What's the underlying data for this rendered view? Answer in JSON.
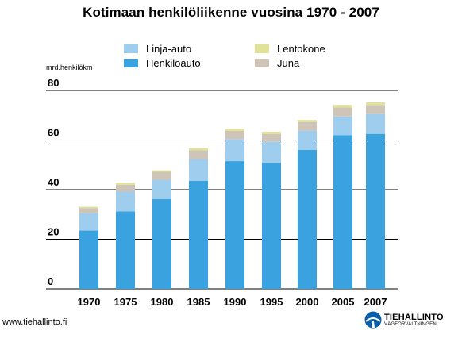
{
  "chart_data": {
    "type": "bar",
    "stacked": true,
    "title": "Kotimaan henkilöliikenne vuosina 1970 - 2007",
    "unit_label": "mrd.henkilökm",
    "categories": [
      "1970",
      "1975",
      "1980",
      "1985",
      "1990",
      "1995",
      "2000",
      "2005",
      "2007"
    ],
    "series": [
      {
        "name": "Henkilöauto",
        "color": "#3aa3df",
        "values": [
          23.5,
          31.2,
          36.2,
          43.6,
          51.5,
          50.8,
          56.0,
          62.0,
          62.5
        ]
      },
      {
        "name": "Linja-auto",
        "color": "#9fcdee",
        "values": [
          7.0,
          8.0,
          7.8,
          8.7,
          8.9,
          8.5,
          7.8,
          7.5,
          8.0
        ]
      },
      {
        "name": "Juna",
        "color": "#cfc4b8",
        "values": [
          2.0,
          2.8,
          3.2,
          3.6,
          3.3,
          3.2,
          3.4,
          3.6,
          3.6
        ]
      },
      {
        "name": "Lentokone",
        "color": "#dfe297",
        "values": [
          0.6,
          0.8,
          0.6,
          0.9,
          0.9,
          0.9,
          0.9,
          1.1,
          1.1
        ]
      }
    ],
    "ylim": [
      0,
      80
    ],
    "yticks": [
      "0",
      "20",
      "40",
      "60",
      "80"
    ],
    "grid": true,
    "legend": {
      "placement": "top",
      "items": [
        {
          "name": "Linja-auto",
          "color": "#9fcdee"
        },
        {
          "name": "Henkilöauto",
          "color": "#3aa3df"
        },
        {
          "name": "Lentokone",
          "color": "#dfe297"
        },
        {
          "name": "Juna",
          "color": "#cfc4b8"
        }
      ]
    }
  },
  "footer": {
    "url": "www.tiehallinto.fi",
    "logo_main": "TIEHALLINTO",
    "logo_sub": "VÄGFÖRVALTNINGEN",
    "logo_icon": "road-authority-logo-icon"
  }
}
